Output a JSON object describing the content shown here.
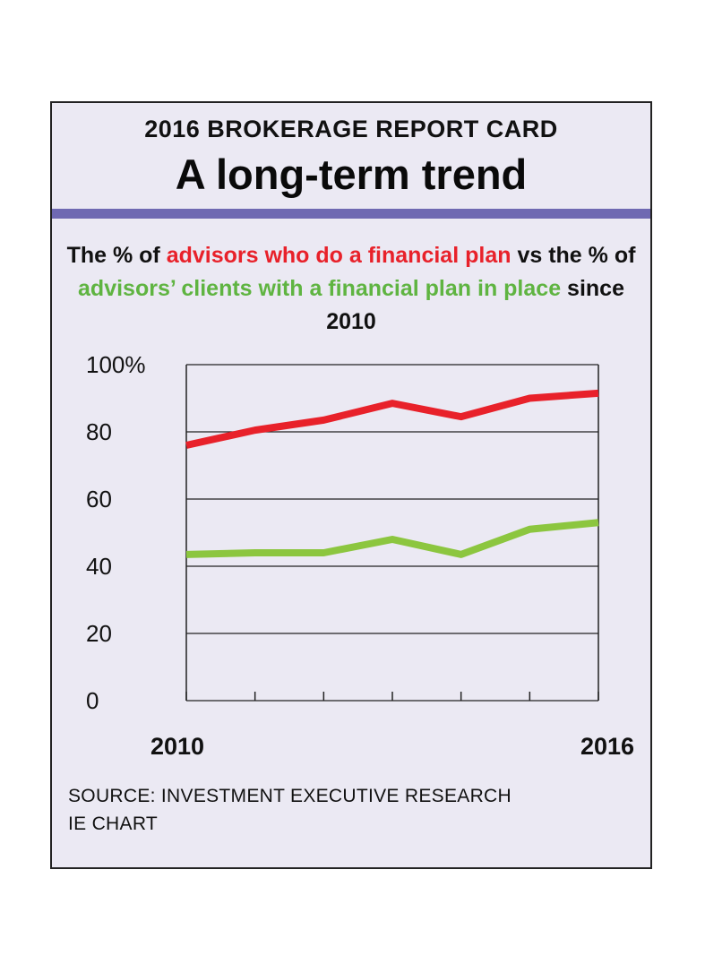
{
  "header": {
    "kicker": "2016 BROKERAGE REPORT CARD",
    "headline": "A long-term trend"
  },
  "subtitle": {
    "part1": "The % of ",
    "part2": "advisors who do a financial plan",
    "part3": " vs the % of ",
    "part4": "advisors’ clients with a financial plan in place",
    "part5": " since 2010"
  },
  "chart_data": {
    "type": "line",
    "x": [
      2010,
      2011,
      2012,
      2013,
      2014,
      2015,
      2016
    ],
    "series": [
      {
        "values": [
          76,
          80.5,
          83.5,
          88.5,
          84.5,
          90,
          91.5
        ],
        "color": "#e8212a"
      },
      {
        "values": [
          43.5,
          44,
          44,
          48,
          43.5,
          51,
          53
        ],
        "color": "#8cc63f"
      }
    ],
    "ylim": [
      0,
      100
    ],
    "yticks": [
      {
        "value": 100,
        "label": "100%"
      },
      {
        "value": 80,
        "label": "80"
      },
      {
        "value": 60,
        "label": "60"
      },
      {
        "value": 40,
        "label": "40"
      },
      {
        "value": 20,
        "label": "20"
      },
      {
        "value": 0,
        "label": "0"
      }
    ],
    "xtick_labels": [
      {
        "value": 2010,
        "label": "2010"
      },
      {
        "value": 2016,
        "label": "2016"
      }
    ],
    "grid": true
  },
  "footer": {
    "source": "SOURCE: INVESTMENT EXECUTIVE RESEARCH",
    "credit": "IE CHART"
  }
}
